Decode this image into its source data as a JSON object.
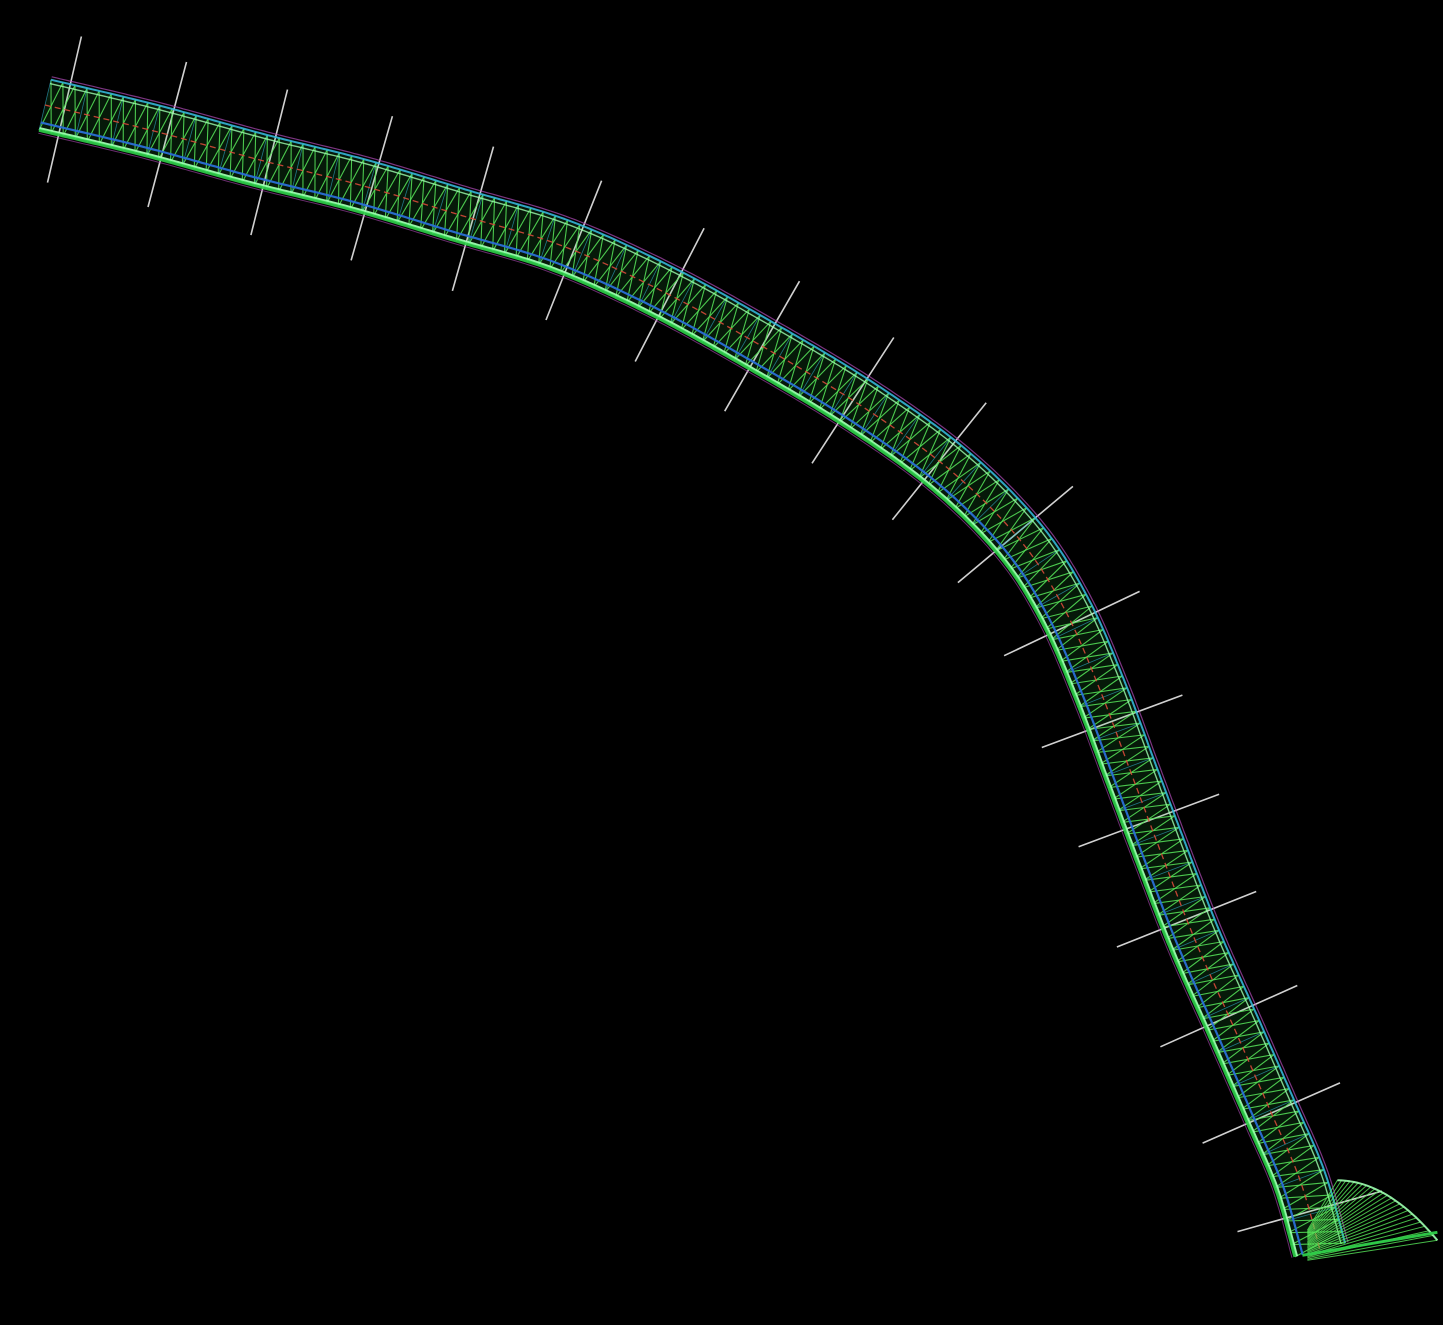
{
  "scene": {
    "background": "#000000",
    "station_count": 18,
    "colors": {
      "section_lines": "#e8e8e8",
      "truss_web": "#58e85a",
      "truss_chord": "#2fcf4a",
      "bright_edge": "#9dffb0",
      "inner_chord": "#2a6fd6",
      "outer_chord": "#34b6d8",
      "centerline": "#d84a3a",
      "trim_edge": "#b04bb8"
    }
  }
}
